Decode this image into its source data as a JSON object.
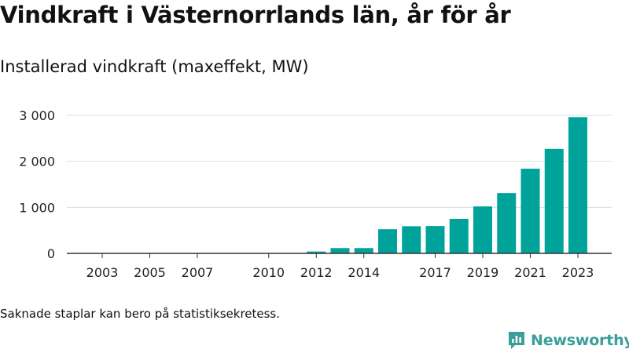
{
  "title": "Vindkraft i Västernorrlands län, år för år",
  "subtitle": "Installerad vindkraft (maxeffekt, MW)",
  "note": "Saknade staplar kan bero på statistiksekretess.",
  "brand": "Newsworthy",
  "colors": {
    "bar": "#00a39a",
    "grid": "#dddddd",
    "axis": "#333333",
    "brand": "#3a9f98"
  },
  "chart_data": {
    "type": "bar",
    "title": "Vindkraft i Västernorrlands län, år för år",
    "subtitle": "Installerad vindkraft (maxeffekt, MW)",
    "categories": [
      "2003",
      "2004",
      "2005",
      "2006",
      "2007",
      "2008",
      "2009",
      "2010",
      "2011",
      "2012",
      "2013",
      "2014",
      "2015",
      "2016",
      "2017",
      "2018",
      "2019",
      "2020",
      "2021",
      "2022",
      "2023"
    ],
    "values": [
      1,
      1,
      1,
      1,
      1,
      1,
      1,
      1,
      1,
      40,
      115,
      115,
      525,
      590,
      595,
      750,
      1020,
      1310,
      1840,
      2270,
      2960
    ],
    "x_tick_labels": [
      "2003",
      "2005",
      "2007",
      "2010",
      "2012",
      "2014",
      "2017",
      "2019",
      "2021",
      "2023"
    ],
    "y_ticks": [
      0,
      1000,
      2000,
      3000
    ],
    "y_tick_labels": [
      "0",
      "1 000",
      "2 000",
      "3 000"
    ],
    "ylim": [
      0,
      3000
    ],
    "xlabel": "",
    "ylabel": "",
    "grid": true
  }
}
